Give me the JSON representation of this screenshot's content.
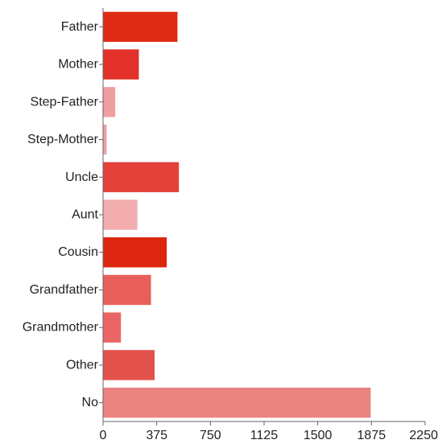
{
  "chart_data": {
    "type": "bar",
    "orientation": "horizontal",
    "title": "",
    "xlabel": "",
    "ylabel": "",
    "categories": [
      "Father",
      "Mother",
      "Step-Father",
      "Step-Mother",
      "Uncle",
      "Aunt",
      "Cousin",
      "Grandfather",
      "Grandmother",
      "Other",
      "No"
    ],
    "values": [
      520,
      250,
      85,
      25,
      530,
      240,
      445,
      335,
      125,
      360,
      1870
    ],
    "colors": [
      "#e02c14",
      "#e2312a",
      "#f09fa1",
      "#f0a0a2",
      "#e3413a",
      "#f3adae",
      "#dd2610",
      "#e85e59",
      "#ea6664",
      "#e3514b",
      "#ea8380"
    ],
    "xlim": [
      0,
      2250
    ],
    "xticks": [
      "0",
      "375",
      "750",
      "1125",
      "1500",
      "1875",
      "2250"
    ],
    "grid": false,
    "legend": "none"
  }
}
